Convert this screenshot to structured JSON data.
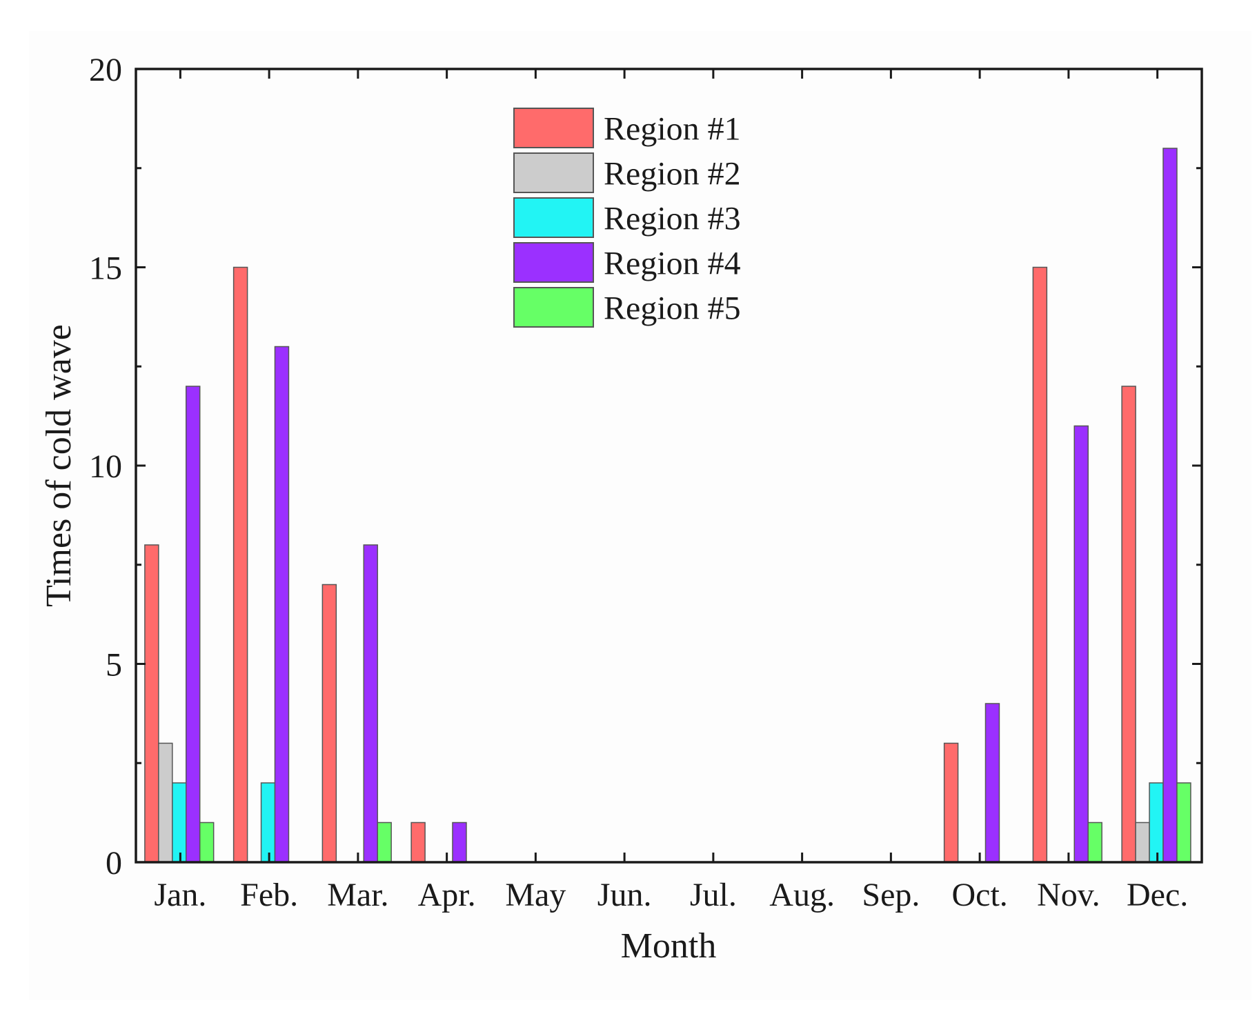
{
  "chart_data": {
    "type": "bar",
    "title": "",
    "xlabel": "Month",
    "ylabel": "Times of cold wave",
    "ylim": [
      0,
      20
    ],
    "yticks": [
      0,
      5,
      10,
      15,
      20
    ],
    "categories": [
      "Jan.",
      "Feb.",
      "Mar.",
      "Apr.",
      "May",
      "Jun.",
      "Jul.",
      "Aug.",
      "Sep.",
      "Oct.",
      "Nov.",
      "Dec."
    ],
    "series": [
      {
        "name": "Region #1",
        "color": "#ff6b6b",
        "values": [
          8,
          15,
          7,
          1,
          0,
          0,
          0,
          0,
          0,
          3,
          15,
          12
        ]
      },
      {
        "name": "Region #2",
        "color": "#cccccc",
        "values": [
          3,
          0,
          0,
          0,
          0,
          0,
          0,
          0,
          0,
          0,
          0,
          1
        ]
      },
      {
        "name": "Region #3",
        "color": "#22f4f4",
        "values": [
          2,
          2,
          0,
          0,
          0,
          0,
          0,
          0,
          0,
          0,
          0,
          2
        ]
      },
      {
        "name": "Region #4",
        "color": "#9b30ff",
        "values": [
          12,
          13,
          8,
          1,
          0,
          0,
          0,
          0,
          0,
          4,
          11,
          18
        ]
      },
      {
        "name": "Region #5",
        "color": "#66ff66",
        "values": [
          1,
          0,
          1,
          0,
          0,
          0,
          0,
          0,
          0,
          0,
          1,
          2
        ]
      }
    ],
    "legend_position": "top-center",
    "grid": false
  }
}
